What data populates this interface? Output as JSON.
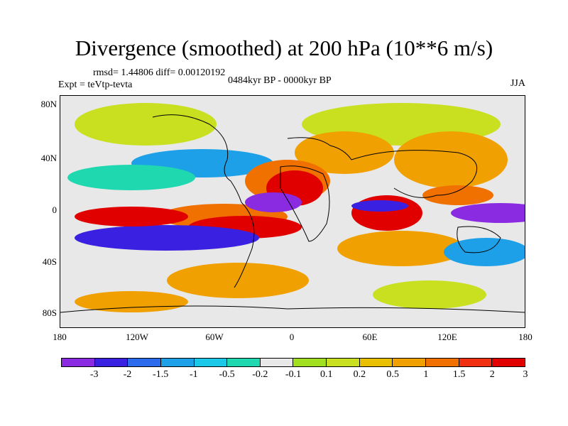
{
  "title": "Divergence (smoothed) at 200 hPa (10**6 m/s)",
  "stats": "rmsd= 1.44806 diff= 0.00120192",
  "expt": "Expt = teVtp-tevta",
  "period": "0484kyr BP - 0000kyr BP",
  "season": "JJA",
  "lat_labels": [
    "80N",
    "40N",
    "0",
    "40S",
    "80S"
  ],
  "lon_labels": [
    "180",
    "120W",
    "60W",
    "0",
    "60E",
    "120E",
    "180"
  ],
  "colorbar": {
    "colors": [
      "#8a2be2",
      "#3a20e0",
      "#2c6cec",
      "#1ea0e8",
      "#1cc8e8",
      "#20d8b0",
      "#e8e8e8",
      "#a0e020",
      "#c8e020",
      "#e8c000",
      "#f0a000",
      "#f07000",
      "#f03010",
      "#e00000"
    ],
    "labels": [
      "-3",
      "-2",
      "-1.5",
      "-1",
      "-0.5",
      "-0.2",
      "-0.1",
      "0.1",
      "0.2",
      "0.5",
      "1",
      "1.5",
      "2",
      "3"
    ]
  },
  "map_fields": [
    {
      "name": "purple-tropical-atlantic",
      "color": "#8a2be2"
    },
    {
      "name": "purple-west-pacific",
      "color": "#8a2be2"
    },
    {
      "name": "blue-south-pacific",
      "color": "#3a20e0"
    },
    {
      "name": "red-west-africa",
      "color": "#e00000"
    },
    {
      "name": "red-indian-ocean",
      "color": "#e00000"
    },
    {
      "name": "red-east-pacific",
      "color": "#e00000"
    },
    {
      "name": "orange-north-africa",
      "color": "#f07000"
    },
    {
      "name": "green-arctic",
      "color": "#a0e020"
    }
  ]
}
